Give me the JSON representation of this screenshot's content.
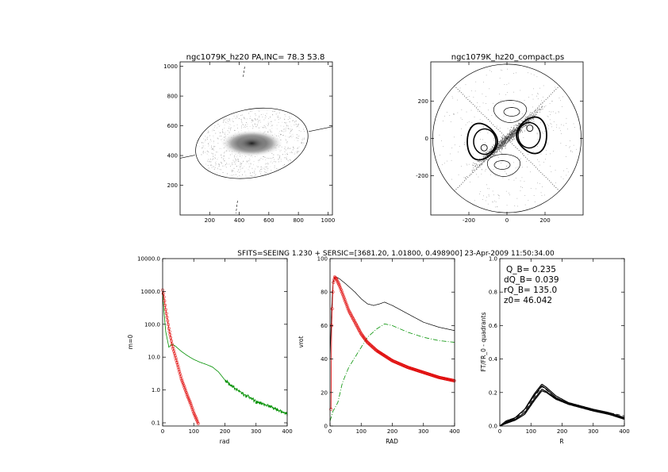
{
  "caption": "SFITS=SEEING 1.230 + SERSIC=[3681.20, 1.01800, 0.498900]  23-Apr-2009 11:50:34.00",
  "colors": {
    "axes": "#000000",
    "red": "#e00000",
    "green": "#009000",
    "gray": "#555555"
  },
  "chart_data": [
    {
      "type": "scatter",
      "panel": "image",
      "title": "ngc1079K_hz20 PA,INC= 78.3 53.8",
      "xlim": [
        0,
        1030
      ],
      "ylim": [
        0,
        1030
      ],
      "xticks": [
        200,
        400,
        600,
        800,
        1000
      ],
      "yticks": [
        200,
        400,
        600,
        800,
        1000
      ],
      "center": [
        485,
        482
      ],
      "ellipse": {
        "rx": 385,
        "ry": 230,
        "angle_deg": 11.7
      },
      "major_axis_pa_deg": 78.3
    },
    {
      "type": "scatter",
      "panel": "contour",
      "title": "ngc1079K_hz20_compact.ps",
      "xlim": [
        -400,
        400
      ],
      "ylim": [
        -410,
        410
      ],
      "xticks": [
        -200,
        0,
        200
      ],
      "yticks": [
        -200,
        0,
        200
      ],
      "outer_circle_radius": 390
    },
    {
      "type": "line",
      "panel": "profile",
      "xlabel": "rad",
      "ylabel": "m=0",
      "xlim": [
        0,
        400
      ],
      "ylim": [
        0.08,
        10000
      ],
      "yscale": "log",
      "xticks": [
        0,
        100,
        200,
        300,
        400
      ],
      "yticks": [
        0.1,
        1.0,
        10.0,
        100.0,
        1000.0,
        10000.0
      ],
      "ytick_labels": [
        "0.1",
        "1.0",
        "10.0",
        "100.0",
        "1000.0",
        "10000.0"
      ],
      "series": [
        {
          "color": "green",
          "x": [
            0,
            5,
            10,
            20,
            30,
            40,
            60,
            80,
            100,
            120,
            140,
            160,
            180,
            200,
            250,
            300,
            350,
            400
          ],
          "y": [
            1000,
            200,
            60,
            20,
            25,
            22,
            15,
            11,
            8.5,
            7,
            6,
            5,
            3.5,
            2,
            0.85,
            0.45,
            0.3,
            0.18
          ]
        },
        {
          "color": "red",
          "x": [
            0,
            5,
            10,
            20,
            30,
            40,
            50,
            60,
            70,
            80,
            90,
            100,
            110,
            115
          ],
          "y": [
            1100,
            600,
            280,
            75,
            25,
            11,
            5,
            2.2,
            1.2,
            0.65,
            0.38,
            0.2,
            0.12,
            0.09
          ]
        }
      ]
    },
    {
      "type": "line",
      "panel": "rotation",
      "xlabel": "RAD",
      "ylabel": "vrot",
      "xlim": [
        0,
        400
      ],
      "ylim": [
        0,
        100
      ],
      "xticks": [
        0,
        100,
        200,
        300,
        400
      ],
      "yticks": [
        0,
        20,
        40,
        60,
        80,
        100
      ],
      "series": [
        {
          "color": "black",
          "x": [
            0,
            5,
            10,
            15,
            20,
            30,
            50,
            80,
            100,
            120,
            140,
            160,
            175,
            200,
            250,
            300,
            350,
            400
          ],
          "y": [
            40,
            70,
            86,
            89,
            89,
            88,
            85,
            80,
            76,
            73,
            72,
            73,
            74,
            72,
            67,
            62,
            59,
            57
          ]
        },
        {
          "color": "green",
          "x": [
            0,
            10,
            25,
            40,
            60,
            80,
            100,
            120,
            150,
            175,
            200,
            250,
            300,
            350,
            400
          ],
          "y": [
            3,
            9,
            14,
            26,
            35,
            41,
            47,
            53,
            58,
            61,
            60,
            56,
            53,
            51,
            50
          ]
        },
        {
          "color": "red",
          "x": [
            3,
            5,
            10,
            15,
            20,
            30,
            40,
            50,
            60,
            80,
            100,
            120,
            150,
            175,
            200,
            250,
            300,
            350,
            400
          ],
          "y": [
            10,
            60,
            85,
            89,
            88,
            84,
            79,
            74,
            69,
            62,
            55,
            50,
            45,
            42,
            39,
            35,
            32,
            29,
            27
          ]
        }
      ]
    },
    {
      "type": "line",
      "panel": "torque",
      "xlabel": "R",
      "ylabel": "FT/FR_0 - quadrants",
      "xlim": [
        0,
        400
      ],
      "ylim": [
        0,
        1
      ],
      "xticks": [
        0,
        100,
        200,
        300,
        400
      ],
      "yticks": [
        0.0,
        0.2,
        0.4,
        0.6,
        0.8,
        1.0
      ],
      "ytick_labels": [
        "0.0",
        "0.2",
        "0.4",
        "0.6",
        "0.8",
        "1.0"
      ],
      "annotations": [
        "Q_B=  0.235",
        "dQ_B=  0.039",
        "rQ_B=  135.0",
        "z0= 46.042"
      ],
      "series": [
        {
          "x": [
            0,
            20,
            50,
            80,
            110,
            135,
            150,
            180,
            220,
            260,
            300,
            350,
            400
          ],
          "y": [
            0,
            0.02,
            0.05,
            0.1,
            0.19,
            0.25,
            0.23,
            0.18,
            0.14,
            0.12,
            0.1,
            0.08,
            0.05
          ]
        },
        {
          "x": [
            0,
            20,
            50,
            80,
            110,
            135,
            150,
            180,
            220,
            260,
            300,
            350,
            400
          ],
          "y": [
            0,
            0.03,
            0.05,
            0.1,
            0.18,
            0.24,
            0.22,
            0.17,
            0.135,
            0.115,
            0.095,
            0.075,
            0.05
          ]
        },
        {
          "x": [
            0,
            20,
            50,
            80,
            110,
            135,
            150,
            180,
            220,
            260,
            300,
            350,
            400
          ],
          "y": [
            0,
            0.02,
            0.04,
            0.08,
            0.16,
            0.22,
            0.205,
            0.165,
            0.13,
            0.11,
            0.09,
            0.07,
            0.045
          ]
        },
        {
          "x": [
            0,
            20,
            50,
            80,
            110,
            135,
            150,
            180,
            220,
            260,
            300,
            350,
            400
          ],
          "y": [
            0,
            0.015,
            0.035,
            0.07,
            0.15,
            0.21,
            0.2,
            0.16,
            0.13,
            0.11,
            0.09,
            0.07,
            0.04
          ]
        },
        {
          "x": [
            0,
            20,
            50,
            80,
            110,
            135,
            150,
            180,
            220,
            260,
            300,
            350,
            400
          ],
          "y": [
            0,
            0.025,
            0.045,
            0.09,
            0.17,
            0.235,
            0.215,
            0.17,
            0.135,
            0.115,
            0.095,
            0.08,
            0.06
          ],
          "dashed": true
        }
      ]
    }
  ]
}
